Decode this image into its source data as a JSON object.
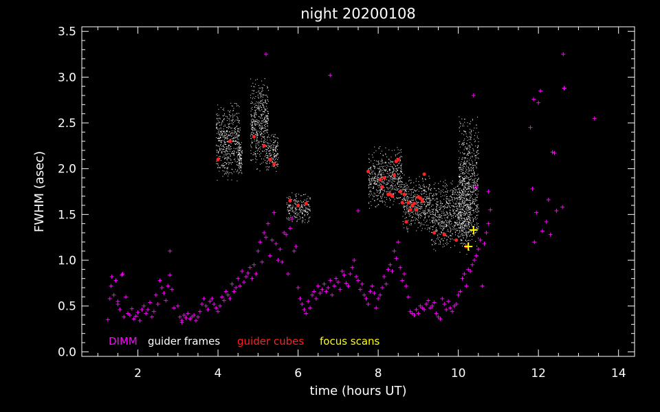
{
  "chart_data": {
    "type": "scatter",
    "title": "night 20200108",
    "xlabel": "time (hours UT)",
    "ylabel": "FWHM (asec)",
    "xlim": [
      0.6,
      14.4
    ],
    "ylim": [
      -0.05,
      3.55
    ],
    "x_ticks": [
      2,
      4,
      6,
      8,
      10,
      12,
      14
    ],
    "y_ticks": [
      0.0,
      0.5,
      1.0,
      1.5,
      2.0,
      2.5,
      3.0,
      3.5
    ],
    "y_tick_labels": [
      "0.0",
      "0.5",
      "1.0",
      "1.5",
      "2.0",
      "2.5",
      "3.0",
      "3.5"
    ],
    "legend_position": "bottom-left",
    "series": [
      {
        "name": "DIMM",
        "color": "#ff00ff",
        "marker": "plus-small",
        "x": [
          1.25,
          1.3,
          1.35,
          1.4,
          1.45,
          1.5,
          1.55,
          1.6,
          1.65,
          1.7,
          1.75,
          1.8,
          1.85,
          1.9,
          1.95,
          2.0,
          2.05,
          2.1,
          2.15,
          2.2,
          2.25,
          2.3,
          2.35,
          2.4,
          2.45,
          2.5,
          2.55,
          2.6,
          2.65,
          2.7,
          2.75,
          2.8,
          2.85,
          2.9,
          3.0,
          3.05,
          3.1,
          3.15,
          3.2,
          3.25,
          3.3,
          3.35,
          3.4,
          3.45,
          3.5,
          3.55,
          3.6,
          3.65,
          3.7,
          3.75,
          3.8,
          3.85,
          3.9,
          3.95,
          4.0,
          4.05,
          4.1,
          4.15,
          4.2,
          4.25,
          4.3,
          4.35,
          4.4,
          4.45,
          4.5,
          4.55,
          4.6,
          4.65,
          4.7,
          4.75,
          4.8,
          4.85,
          4.9,
          4.95,
          5.0,
          5.05,
          5.1,
          5.15,
          5.2,
          5.25,
          5.3,
          5.35,
          5.4,
          5.45,
          5.5,
          5.55,
          5.6,
          5.65,
          5.7,
          5.75,
          5.8,
          5.85,
          5.9,
          5.95,
          6.0,
          6.05,
          6.1,
          6.15,
          6.2,
          6.25,
          6.3,
          6.35,
          6.4,
          6.45,
          6.5,
          6.55,
          6.6,
          6.65,
          6.7,
          6.75,
          6.8,
          6.85,
          6.9,
          6.95,
          7.0,
          7.05,
          7.1,
          7.15,
          7.2,
          7.25,
          7.3,
          7.35,
          7.4,
          7.45,
          7.5,
          7.55,
          7.6,
          7.65,
          7.7,
          7.75,
          7.8,
          7.85,
          7.9,
          7.95,
          8.0,
          8.05,
          8.1,
          8.15,
          8.2,
          8.25,
          8.3,
          8.35,
          8.4,
          8.45,
          8.5,
          8.55,
          8.6,
          8.65,
          8.7,
          8.75,
          8.8,
          8.85,
          8.9,
          8.95,
          9.0,
          9.05,
          9.1,
          9.15,
          9.2,
          9.25,
          9.3,
          9.35,
          9.4,
          9.45,
          9.5,
          9.55,
          9.6,
          9.65,
          9.7,
          9.75,
          9.8,
          9.85,
          9.9,
          9.95,
          10.0,
          10.05,
          10.1,
          10.15,
          10.2,
          10.25,
          10.3,
          10.35,
          10.4,
          10.45,
          10.5,
          10.55,
          10.6,
          10.65,
          10.7,
          10.75,
          10.8,
          11.8,
          11.85,
          11.9,
          11.95,
          12.0,
          12.05,
          12.1,
          12.2,
          12.25,
          12.3,
          12.35,
          12.4,
          12.45,
          12.6,
          12.65,
          13.4,
          1.33,
          1.5,
          1.62,
          2.8,
          3.1,
          5.2,
          6.8,
          7.5,
          10.38,
          10.45,
          10.75,
          11.88,
          12.62,
          12.64
        ],
        "y": [
          0.35,
          0.58,
          0.82,
          0.62,
          0.78,
          0.55,
          0.46,
          0.84,
          0.38,
          0.6,
          0.42,
          0.4,
          0.47,
          0.36,
          0.39,
          0.43,
          0.34,
          0.46,
          0.5,
          0.42,
          0.46,
          0.54,
          0.38,
          0.44,
          0.62,
          0.52,
          0.78,
          0.7,
          0.64,
          0.56,
          0.72,
          0.84,
          0.68,
          0.48,
          0.5,
          0.38,
          0.34,
          0.4,
          0.37,
          0.42,
          0.36,
          0.38,
          0.4,
          0.34,
          0.38,
          0.44,
          0.52,
          0.58,
          0.5,
          0.46,
          0.55,
          0.58,
          0.52,
          0.48,
          0.44,
          0.5,
          0.6,
          0.56,
          0.66,
          0.62,
          0.58,
          0.74,
          0.66,
          0.7,
          0.8,
          0.72,
          0.88,
          0.76,
          0.82,
          0.86,
          0.92,
          0.8,
          0.95,
          0.85,
          1.1,
          1.2,
          0.98,
          1.3,
          1.25,
          1.4,
          1.05,
          1.22,
          1.52,
          1.18,
          1.0,
          1.12,
          0.98,
          1.3,
          1.28,
          0.85,
          1.35,
          1.45,
          1.1,
          1.15,
          0.7,
          0.58,
          0.52,
          0.46,
          0.42,
          0.55,
          0.48,
          0.62,
          0.66,
          0.58,
          0.72,
          0.64,
          0.68,
          0.74,
          0.66,
          0.7,
          0.78,
          0.62,
          0.72,
          0.8,
          0.76,
          0.68,
          0.88,
          0.84,
          0.75,
          0.72,
          0.85,
          0.92,
          1.0,
          0.82,
          0.78,
          0.68,
          0.74,
          0.62,
          0.58,
          0.52,
          0.66,
          0.72,
          0.64,
          0.48,
          0.58,
          0.62,
          0.7,
          0.82,
          0.74,
          0.9,
          0.95,
          0.88,
          1.1,
          1.02,
          1.2,
          0.92,
          0.78,
          0.85,
          0.72,
          0.6,
          0.44,
          0.42,
          0.4,
          0.46,
          0.42,
          0.5,
          0.48,
          0.46,
          0.52,
          0.56,
          0.48,
          0.5,
          0.54,
          0.42,
          0.38,
          0.36,
          0.58,
          0.52,
          0.46,
          0.55,
          0.48,
          0.44,
          0.5,
          0.52,
          0.62,
          0.66,
          0.8,
          0.85,
          0.72,
          0.9,
          0.88,
          0.95,
          1.0,
          1.05,
          1.12,
          1.22,
          0.72,
          1.18,
          1.3,
          1.4,
          1.55,
          2.45,
          1.78,
          1.2,
          1.52,
          2.72,
          2.85,
          1.32,
          1.42,
          1.66,
          1.28,
          2.18,
          2.17,
          1.54,
          1.58,
          2.88,
          2.55,
          0.72,
          0.52,
          0.85,
          1.1,
          0.32,
          3.25,
          3.02,
          1.54,
          2.8,
          1.8,
          1.75,
          2.76,
          3.25,
          2.88
        ]
      },
      {
        "name": "guider frames",
        "color": "#ffffff",
        "marker": "dot",
        "clusters": [
          {
            "x": [
              3.95,
              4.55
            ],
            "y": [
              1.85,
              2.75
            ]
          },
          {
            "x": [
              4.5,
              4.6
            ],
            "y": [
              1.9,
              2.3
            ]
          },
          {
            "x": [
              4.8,
              5.25
            ],
            "y": [
              1.95,
              3.05
            ]
          },
          {
            "x": [
              5.2,
              5.5
            ],
            "y": [
              1.95,
              2.4
            ]
          },
          {
            "x": [
              5.7,
              6.3
            ],
            "y": [
              1.4,
              1.75
            ]
          },
          {
            "x": [
              7.75,
              8.6
            ],
            "y": [
              1.55,
              2.25
            ]
          },
          {
            "x": [
              8.6,
              9.3
            ],
            "y": [
              1.3,
              1.95
            ]
          },
          {
            "x": [
              9.3,
              10.3
            ],
            "y": [
              1.1,
              1.9
            ]
          },
          {
            "x": [
              10.0,
              10.5
            ],
            "y": [
              1.05,
              2.6
            ]
          }
        ]
      },
      {
        "name": "guider cubes",
        "color": "#ff2020",
        "marker": "filled-circle",
        "x": [
          4.0,
          4.3,
          4.9,
          5.15,
          5.3,
          5.4,
          5.8,
          6.0,
          6.2,
          7.75,
          8.05,
          8.1,
          8.15,
          8.25,
          8.3,
          8.35,
          8.4,
          8.45,
          8.5,
          8.55,
          8.6,
          8.65,
          8.7,
          8.75,
          8.8,
          8.85,
          8.9,
          8.95,
          9.0,
          9.05,
          9.1,
          9.15,
          9.4,
          9.65,
          9.95,
          10.2
        ],
        "y": [
          2.1,
          2.3,
          2.35,
          2.25,
          2.1,
          2.05,
          1.65,
          1.6,
          1.62,
          1.97,
          1.88,
          1.8,
          1.9,
          1.72,
          1.72,
          1.7,
          1.93,
          2.08,
          2.1,
          1.75,
          1.63,
          1.72,
          1.42,
          1.63,
          1.55,
          1.6,
          1.62,
          1.55,
          1.69,
          1.68,
          1.65,
          1.94,
          1.3,
          1.28,
          1.22,
          1.15
        ]
      },
      {
        "name": "focus scans",
        "color": "#ffff00",
        "marker": "plus-large",
        "x": [
          10.25,
          10.38
        ],
        "y": [
          1.15,
          1.33
        ]
      }
    ]
  }
}
